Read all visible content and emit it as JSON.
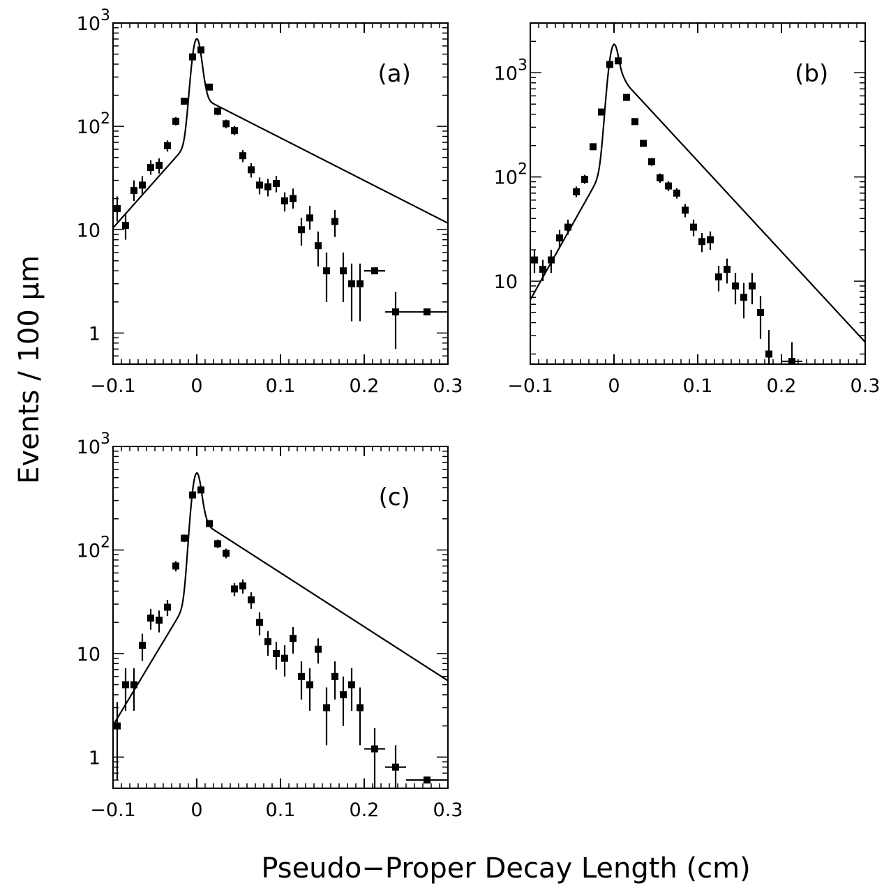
{
  "figure": {
    "ylabel": "Events / 100 μm",
    "xlabel": "Pseudo−Proper Decay Length (cm)"
  },
  "chart_data": [
    {
      "type": "scatter",
      "panel_label": "(a)",
      "xlim": [
        -0.1,
        0.3
      ],
      "ylim": [
        0.5,
        1000
      ],
      "yscale": "log",
      "xticks": [
        "−0.1",
        "0",
        "0.1",
        "0.2",
        "0.3"
      ],
      "yticks": [
        {
          "base": "10",
          "exp": "3"
        },
        {
          "base": "10",
          "exp": "2"
        },
        {
          "base": "10",
          "exp": ""
        },
        {
          "base": "1",
          "exp": ""
        }
      ],
      "ytick_values": [
        1000,
        100,
        10,
        1
      ],
      "grid": false,
      "series": [
        {
          "points": [
            {
              "x": -0.095,
              "y": 16,
              "lo": 12,
              "hi": 21
            },
            {
              "x": -0.085,
              "y": 11,
              "lo": 8,
              "hi": 14
            },
            {
              "x": -0.075,
              "y": 24,
              "lo": 19,
              "hi": 30
            },
            {
              "x": -0.065,
              "y": 27,
              "lo": 22,
              "hi": 33
            },
            {
              "x": -0.055,
              "y": 40,
              "lo": 34,
              "hi": 47
            },
            {
              "x": -0.045,
              "y": 42,
              "lo": 35,
              "hi": 49
            },
            {
              "x": -0.035,
              "y": 65,
              "lo": 57,
              "hi": 73
            },
            {
              "x": -0.025,
              "y": 112,
              "lo": 102,
              "hi": 123
            },
            {
              "x": -0.015,
              "y": 175,
              "lo": 162,
              "hi": 188
            },
            {
              "x": -0.005,
              "y": 470,
              "lo": 448,
              "hi": 492
            },
            {
              "x": 0.005,
              "y": 550,
              "lo": 527,
              "hi": 573
            },
            {
              "x": 0.015,
              "y": 240,
              "lo": 225,
              "hi": 255
            },
            {
              "x": 0.025,
              "y": 140,
              "lo": 128,
              "hi": 152
            },
            {
              "x": 0.035,
              "y": 106,
              "lo": 96,
              "hi": 116
            },
            {
              "x": 0.045,
              "y": 91,
              "lo": 82,
              "hi": 101
            },
            {
              "x": 0.055,
              "y": 52,
              "lo": 45,
              "hi": 59
            },
            {
              "x": 0.065,
              "y": 38,
              "lo": 32,
              "hi": 44
            },
            {
              "x": 0.075,
              "y": 27,
              "lo": 22,
              "hi": 32
            },
            {
              "x": 0.085,
              "y": 26,
              "lo": 21,
              "hi": 31
            },
            {
              "x": 0.095,
              "y": 28,
              "lo": 23,
              "hi": 33
            },
            {
              "x": 0.105,
              "y": 19,
              "lo": 15,
              "hi": 23
            },
            {
              "x": 0.115,
              "y": 20,
              "lo": 16,
              "hi": 25
            },
            {
              "x": 0.125,
              "y": 10,
              "lo": 7,
              "hi": 13
            },
            {
              "x": 0.135,
              "y": 13,
              "lo": 10,
              "hi": 17
            },
            {
              "x": 0.145,
              "y": 7,
              "lo": 4.4,
              "hi": 9.6
            },
            {
              "x": 0.155,
              "y": 4,
              "lo": 2,
              "hi": 6
            },
            {
              "x": 0.165,
              "y": 12,
              "lo": 8.5,
              "hi": 15.5
            },
            {
              "x": 0.175,
              "y": 4,
              "lo": 2,
              "hi": 6
            },
            {
              "x": 0.185,
              "y": 3,
              "lo": 1.3,
              "hi": 4.7
            },
            {
              "x": 0.195,
              "y": 3,
              "lo": 1.3,
              "hi": 4.7
            },
            {
              "x": 0.2125,
              "y": 4,
              "lo": 4,
              "hi": 4,
              "xlo": 0.2,
              "xhi": 0.225
            },
            {
              "x": 0.2375,
              "y": 1.6,
              "lo": 0.7,
              "hi": 2.5,
              "xlo": 0.225,
              "xhi": 0.25
            },
            {
              "x": 0.275,
              "y": 1.6,
              "lo": 1.6,
              "hi": 1.6,
              "xlo": 0.25,
              "xhi": 0.3
            }
          ]
        }
      ],
      "fit": {
        "peak": 700,
        "left_slope": 21,
        "right_slope": 9.5,
        "left_amp": 85,
        "right_amp": 200,
        "sigma": 0.0055
      }
    },
    {
      "type": "scatter",
      "panel_label": "(b)",
      "xlim": [
        -0.1,
        0.3
      ],
      "ylim": [
        1.6,
        3000
      ],
      "yscale": "log",
      "xticks": [
        "−0.1",
        "0",
        "0.1",
        "0.2",
        "0.3"
      ],
      "yticks": [
        {
          "base": "10",
          "exp": "3"
        },
        {
          "base": "10",
          "exp": "2"
        },
        {
          "base": "10",
          "exp": ""
        }
      ],
      "ytick_values": [
        1000,
        100,
        10
      ],
      "grid": false,
      "series": [
        {
          "points": [
            {
              "x": -0.095,
              "y": 16,
              "lo": 12,
              "hi": 20
            },
            {
              "x": -0.085,
              "y": 13,
              "lo": 10,
              "hi": 16
            },
            {
              "x": -0.075,
              "y": 16,
              "lo": 12,
              "hi": 20
            },
            {
              "x": -0.065,
              "y": 26,
              "lo": 21,
              "hi": 31
            },
            {
              "x": -0.055,
              "y": 33,
              "lo": 28,
              "hi": 39
            },
            {
              "x": -0.045,
              "y": 72,
              "lo": 64,
              "hi": 81
            },
            {
              "x": -0.035,
              "y": 95,
              "lo": 86,
              "hi": 105
            },
            {
              "x": -0.025,
              "y": 195,
              "lo": 181,
              "hi": 209
            },
            {
              "x": -0.015,
              "y": 420,
              "lo": 400,
              "hi": 441
            },
            {
              "x": -0.005,
              "y": 1200,
              "lo": 1165,
              "hi": 1235
            },
            {
              "x": 0.005,
              "y": 1300,
              "lo": 1264,
              "hi": 1336
            },
            {
              "x": 0.015,
              "y": 580,
              "lo": 556,
              "hi": 604
            },
            {
              "x": 0.025,
              "y": 340,
              "lo": 322,
              "hi": 358
            },
            {
              "x": 0.035,
              "y": 210,
              "lo": 196,
              "hi": 225
            },
            {
              "x": 0.045,
              "y": 140,
              "lo": 128,
              "hi": 152
            },
            {
              "x": 0.055,
              "y": 98,
              "lo": 88,
              "hi": 108
            },
            {
              "x": 0.065,
              "y": 82,
              "lo": 73,
              "hi": 91
            },
            {
              "x": 0.075,
              "y": 70,
              "lo": 62,
              "hi": 78
            },
            {
              "x": 0.085,
              "y": 48,
              "lo": 41,
              "hi": 55
            },
            {
              "x": 0.095,
              "y": 33,
              "lo": 27,
              "hi": 39
            },
            {
              "x": 0.105,
              "y": 24,
              "lo": 19,
              "hi": 29
            },
            {
              "x": 0.115,
              "y": 25,
              "lo": 20,
              "hi": 30
            },
            {
              "x": 0.125,
              "y": 11,
              "lo": 8,
              "hi": 14
            },
            {
              "x": 0.135,
              "y": 13,
              "lo": 9.5,
              "hi": 16.5
            },
            {
              "x": 0.145,
              "y": 9,
              "lo": 6,
              "hi": 12
            },
            {
              "x": 0.155,
              "y": 7,
              "lo": 4.4,
              "hi": 9.6
            },
            {
              "x": 0.165,
              "y": 9,
              "lo": 6,
              "hi": 12
            },
            {
              "x": 0.175,
              "y": 5,
              "lo": 2.8,
              "hi": 7.2
            },
            {
              "x": 0.185,
              "y": 2,
              "lo": 1.6,
              "hi": 3.4
            },
            {
              "x": 0.2125,
              "y": 1.7,
              "lo": 1.6,
              "hi": 2.6,
              "xlo": 0.2,
              "xhi": 0.225
            }
          ]
        }
      ],
      "fit": {
        "peak": 1850,
        "left_slope": 33,
        "right_slope": 20,
        "left_amp": 180,
        "right_amp": 1050,
        "sigma": 0.006
      }
    },
    {
      "type": "scatter",
      "panel_label": "(c)",
      "xlim": [
        -0.1,
        0.3
      ],
      "ylim": [
        0.5,
        1000
      ],
      "yscale": "log",
      "xticks": [
        "−0.1",
        "0",
        "0.1",
        "0.2",
        "0.3"
      ],
      "yticks": [
        {
          "base": "10",
          "exp": "3"
        },
        {
          "base": "10",
          "exp": "2"
        },
        {
          "base": "10",
          "exp": ""
        },
        {
          "base": "1",
          "exp": ""
        }
      ],
      "ytick_values": [
        1000,
        100,
        10,
        1
      ],
      "grid": false,
      "series": [
        {
          "points": [
            {
              "x": -0.095,
              "y": 2,
              "lo": 0.6,
              "hi": 3.4
            },
            {
              "x": -0.085,
              "y": 5,
              "lo": 2.8,
              "hi": 7.2
            },
            {
              "x": -0.075,
              "y": 5,
              "lo": 2.8,
              "hi": 7.2
            },
            {
              "x": -0.065,
              "y": 12,
              "lo": 8.5,
              "hi": 15.5
            },
            {
              "x": -0.055,
              "y": 22,
              "lo": 17,
              "hi": 27
            },
            {
              "x": -0.045,
              "y": 21,
              "lo": 16,
              "hi": 26
            },
            {
              "x": -0.035,
              "y": 28,
              "lo": 23,
              "hi": 33
            },
            {
              "x": -0.025,
              "y": 70,
              "lo": 62,
              "hi": 78
            },
            {
              "x": -0.015,
              "y": 130,
              "lo": 119,
              "hi": 141
            },
            {
              "x": -0.005,
              "y": 340,
              "lo": 322,
              "hi": 358
            },
            {
              "x": 0.005,
              "y": 380,
              "lo": 361,
              "hi": 399
            },
            {
              "x": 0.015,
              "y": 180,
              "lo": 167,
              "hi": 193
            },
            {
              "x": 0.025,
              "y": 115,
              "lo": 104,
              "hi": 126
            },
            {
              "x": 0.035,
              "y": 93,
              "lo": 83,
              "hi": 103
            },
            {
              "x": 0.045,
              "y": 42,
              "lo": 36,
              "hi": 48
            },
            {
              "x": 0.055,
              "y": 45,
              "lo": 38,
              "hi": 52
            },
            {
              "x": 0.065,
              "y": 33,
              "lo": 27,
              "hi": 39
            },
            {
              "x": 0.075,
              "y": 20,
              "lo": 15,
              "hi": 25
            },
            {
              "x": 0.085,
              "y": 13,
              "lo": 9.5,
              "hi": 16.5
            },
            {
              "x": 0.095,
              "y": 10,
              "lo": 7,
              "hi": 13
            },
            {
              "x": 0.105,
              "y": 9,
              "lo": 6,
              "hi": 12
            },
            {
              "x": 0.115,
              "y": 14,
              "lo": 10,
              "hi": 18
            },
            {
              "x": 0.125,
              "y": 6,
              "lo": 3.6,
              "hi": 8.4
            },
            {
              "x": 0.135,
              "y": 5,
              "lo": 2.8,
              "hi": 7.2
            },
            {
              "x": 0.145,
              "y": 11,
              "lo": 8,
              "hi": 14
            },
            {
              "x": 0.155,
              "y": 3,
              "lo": 1.3,
              "hi": 4.7
            },
            {
              "x": 0.165,
              "y": 6,
              "lo": 3.6,
              "hi": 8.4
            },
            {
              "x": 0.175,
              "y": 4,
              "lo": 2,
              "hi": 6
            },
            {
              "x": 0.185,
              "y": 5,
              "lo": 2.8,
              "hi": 7.2
            },
            {
              "x": 0.195,
              "y": 3,
              "lo": 1.3,
              "hi": 4.7
            },
            {
              "x": 0.2125,
              "y": 1.2,
              "lo": 0.5,
              "hi": 1.9,
              "xlo": 0.2,
              "xhi": 0.225
            },
            {
              "x": 0.2375,
              "y": 0.8,
              "lo": 0.5,
              "hi": 1.3,
              "xlo": 0.225,
              "xhi": 0.25
            },
            {
              "x": 0.275,
              "y": 0.6,
              "lo": 0.6,
              "hi": 0.6,
              "xlo": 0.25,
              "xhi": 0.3
            }
          ]
        }
      ],
      "fit": {
        "peak": 550,
        "left_slope": 31,
        "right_slope": 12,
        "left_amp": 45,
        "right_amp": 200,
        "sigma": 0.0055
      }
    }
  ]
}
